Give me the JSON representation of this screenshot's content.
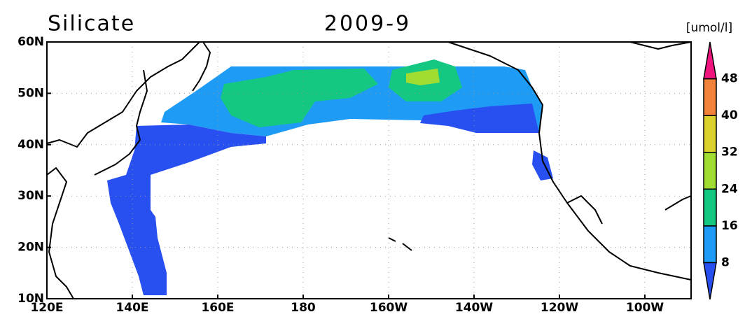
{
  "map": {
    "title": "Silicate",
    "subtitle": "2009-9",
    "units": "[umol/l]",
    "lon_ticks": [
      "120E",
      "140E",
      "160E",
      "180",
      "160W",
      "140W",
      "120W",
      "100W"
    ],
    "lat_ticks": [
      "60N",
      "50N",
      "40N",
      "30N",
      "20N",
      "10N"
    ],
    "colorbar": {
      "levels": [
        8,
        16,
        24,
        32,
        40,
        48
      ],
      "colors": [
        "#2850f0",
        "#1e9bf5",
        "#14c882",
        "#a0dc32",
        "#dcd22d",
        "#f0823c",
        "#f0147f"
      ]
    }
  }
}
